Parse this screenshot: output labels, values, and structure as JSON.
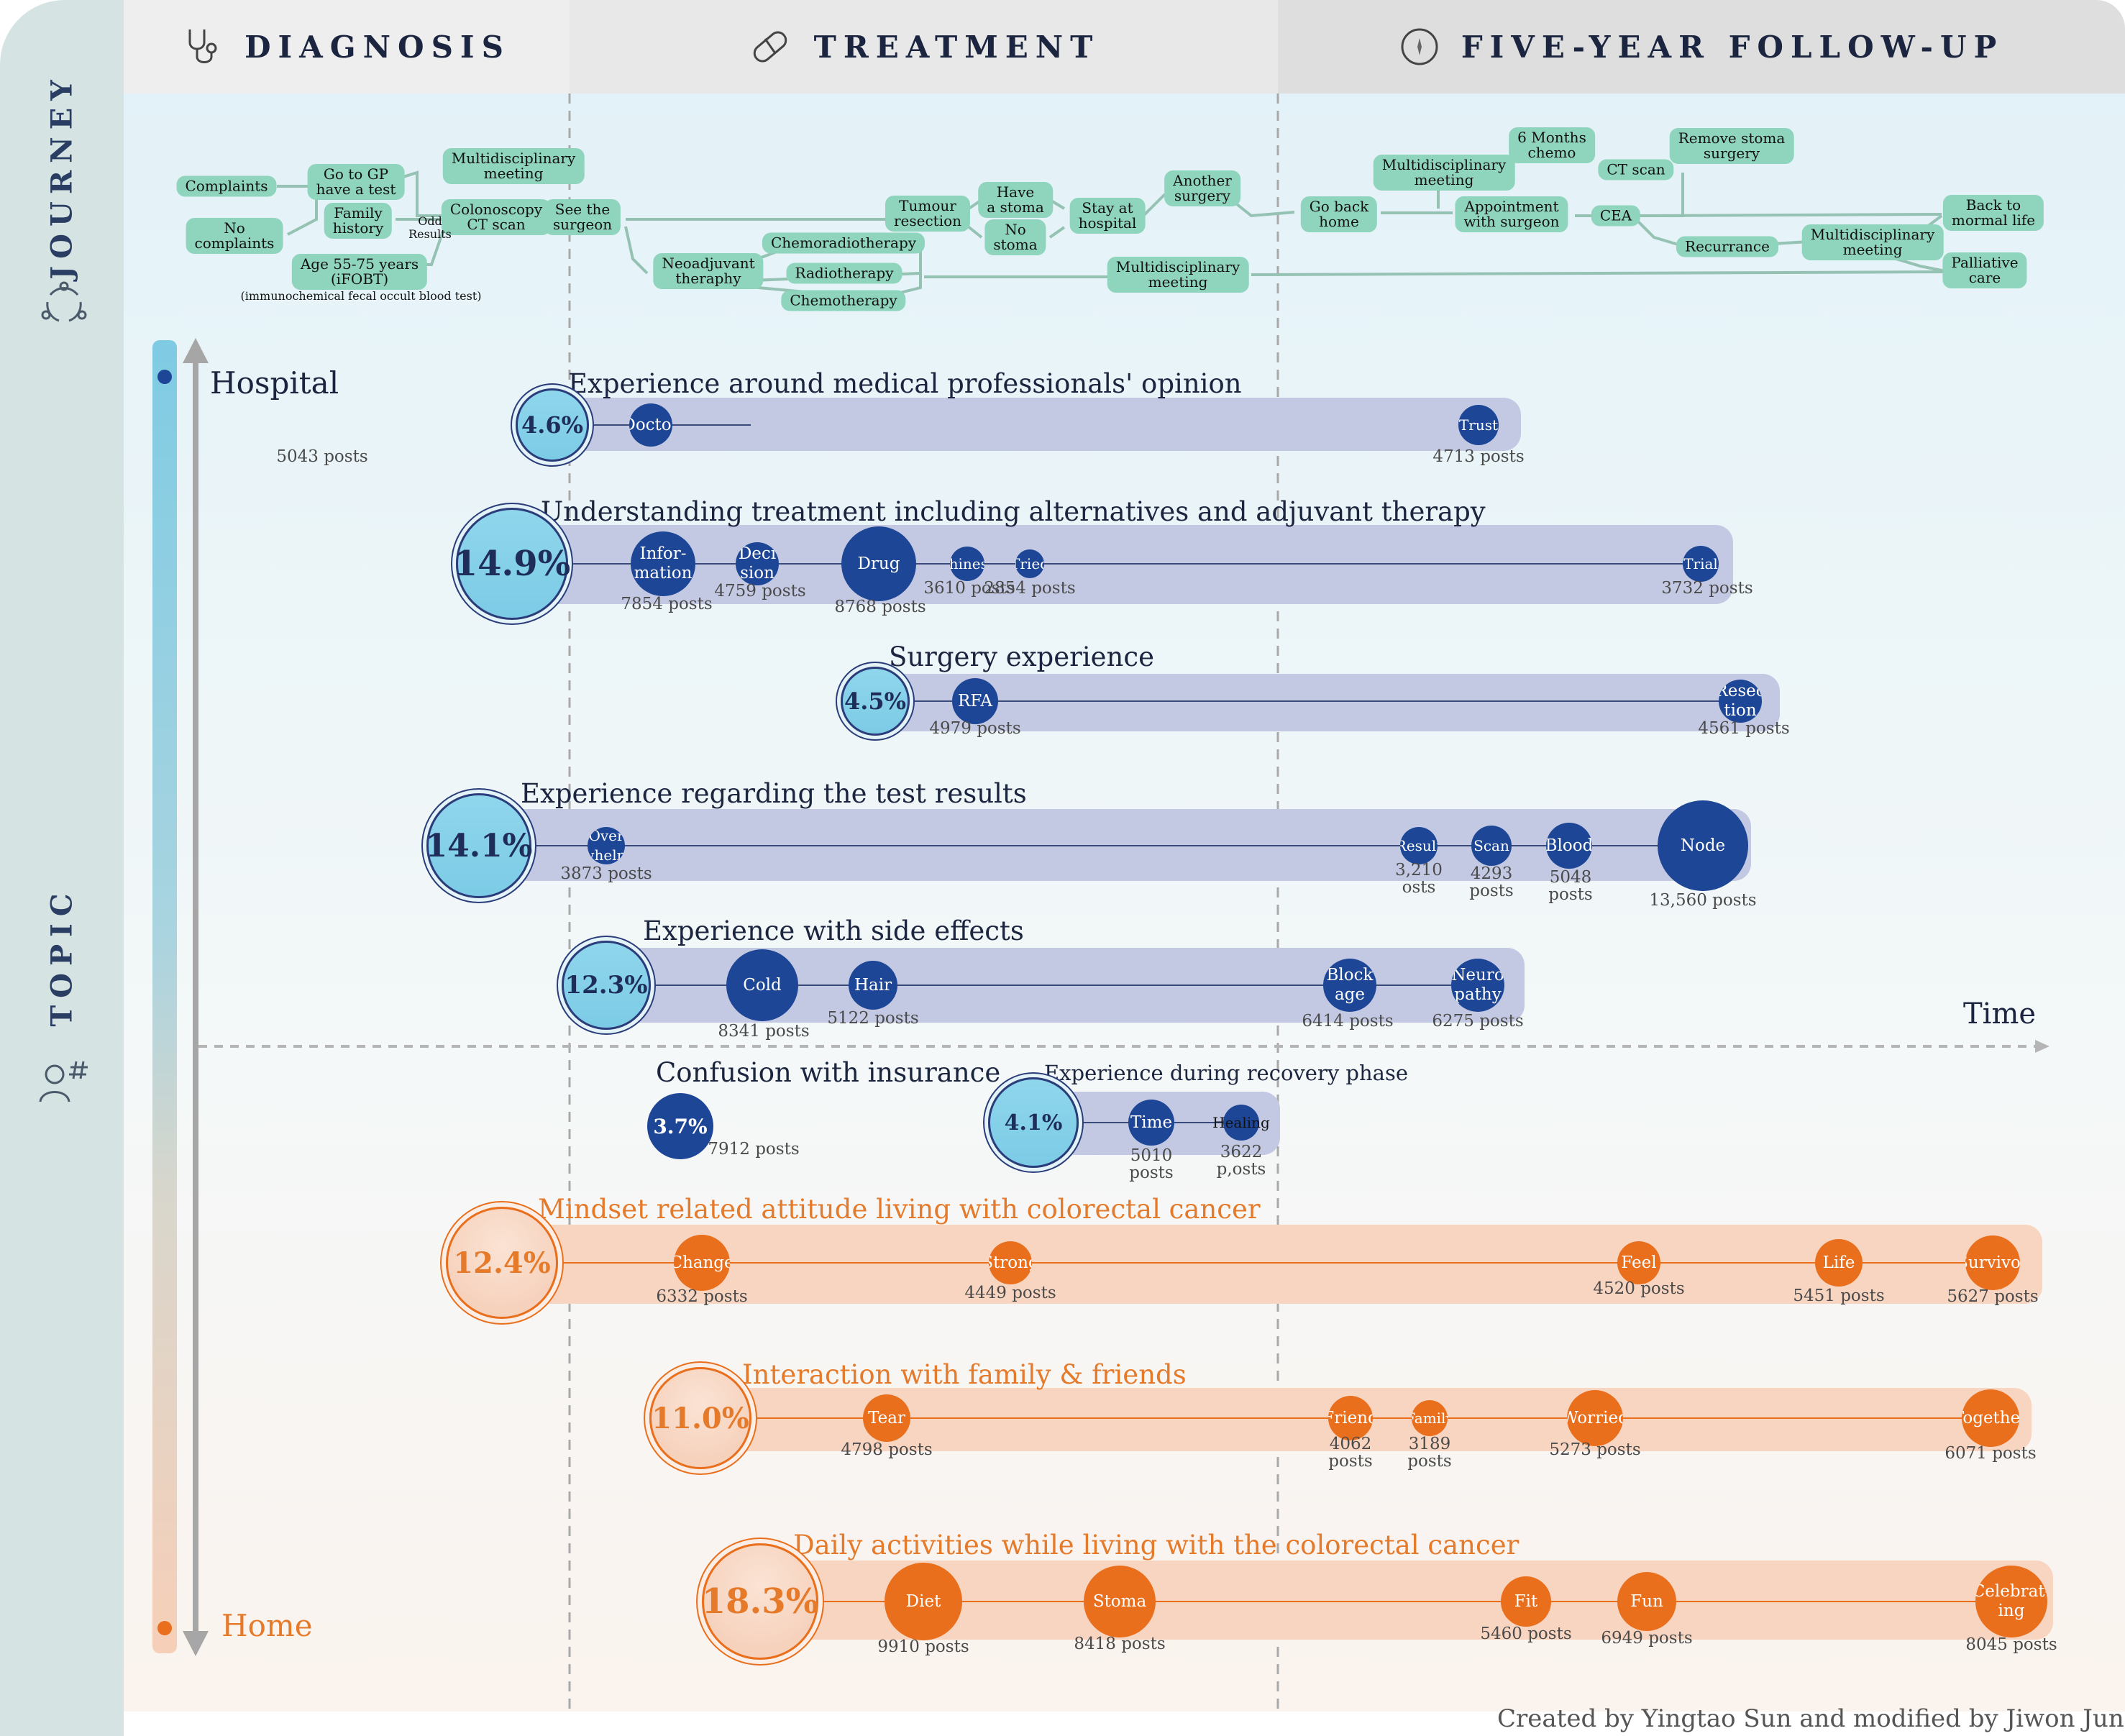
{
  "sidebar": {
    "journey_label": "JOURNEY",
    "topic_label": "TOPIC"
  },
  "phases": [
    {
      "label": "DIAGNOSIS",
      "icon": "stethoscope-icon"
    },
    {
      "label": "TREATMENT",
      "icon": "pill-icon"
    },
    {
      "label": "FIVE-YEAR FOLLOW-UP",
      "icon": "compass-icon"
    }
  ],
  "journey": {
    "nodes": [
      "Complaints",
      "Go to GP\nhave a test",
      "Multidisciplinary\nmeeting",
      "No\ncomplaints",
      "Family\nhistory",
      "Colonoscopy\nCT scan",
      "See the\nsurgeon",
      "Age 55-75 years\n(iFOBT)",
      "Neoadjuvant\ntheraphy",
      "Chemoradiotherapy",
      "Radiotherapy",
      "Chemotherapy",
      "Tumour\nresection",
      "Have\na stoma",
      "No\nstoma",
      "Stay at\nhospital",
      "Another\nsurgery",
      "Multidisciplinary\nmeeting",
      "Go back\nhome",
      "Multidisciplinary\nmeeting",
      "6 Months\nchemo",
      "CT scan",
      "Remove stoma\nsurgery",
      "Appointment\nwith surgeon",
      "CEA",
      "Recurrance",
      "Multidisciplinary\nmeeting",
      "Back to\nmormal life",
      "Palliative\ncare"
    ],
    "odd_results": "Odd\nResults",
    "ifobt_note": "(immunochemical fecal occult blood test)"
  },
  "axis": {
    "top": "Hospital",
    "bottom": "Home",
    "time": "Time"
  },
  "topics": [
    {
      "title": "Experience around medical professionals' opinion",
      "pct": "4.6%",
      "color": "blue",
      "keywords": [
        {
          "label": "Doctor",
          "posts": "5043 posts"
        },
        {
          "label": "Trust",
          "posts": "4713 posts"
        }
      ]
    },
    {
      "title": "Understanding  treatment including alternatives and adjuvant therapy",
      "pct": "14.9%",
      "color": "blue",
      "keywords": [
        {
          "label": "Infor-\nmation",
          "posts": "7854 posts"
        },
        {
          "label": "Deci\nsion",
          "posts": "4759 posts"
        },
        {
          "label": "Drug",
          "posts": "8768 posts"
        },
        {
          "label": "Chinese",
          "posts": "3610 posts"
        },
        {
          "label": "Tried",
          "posts": "2854 posts"
        },
        {
          "label": "Trial",
          "posts": "3732 posts"
        }
      ]
    },
    {
      "title": "Surgery experience",
      "pct": "4.5%",
      "color": "blue",
      "keywords": [
        {
          "label": "RFA",
          "posts": "4979 posts"
        },
        {
          "label": "Resec\ntion",
          "posts": "4561 posts"
        }
      ]
    },
    {
      "title": "Experience regarding the test results",
      "pct": "14.1%",
      "color": "blue",
      "keywords": [
        {
          "label": "Over\nwhelm",
          "posts": "3873 posts"
        },
        {
          "label": "Result",
          "posts": "3,210\nosts"
        },
        {
          "label": "Scan",
          "posts": "4293\nposts"
        },
        {
          "label": "Blood",
          "posts": "5048\nposts"
        },
        {
          "label": "Node",
          "posts": "13,560 posts"
        }
      ]
    },
    {
      "title": "Experience with side effects",
      "pct": "12.3%",
      "color": "blue",
      "keywords": [
        {
          "label": "Cold",
          "posts": "8341 posts"
        },
        {
          "label": "Hair",
          "posts": "5122 posts"
        },
        {
          "label": "Block\nage",
          "posts": "6414 posts"
        },
        {
          "label": "Neuro\npathy",
          "posts": "6275 posts"
        }
      ]
    },
    {
      "title": "Confusion with insurance",
      "pct": "3.7%",
      "color": "blue",
      "posts": "7912 posts",
      "keywords": []
    },
    {
      "title": "Experience during recovery phase",
      "pct": "4.1%",
      "color": "blue",
      "keywords": [
        {
          "label": "Time",
          "posts": "5010\nposts"
        },
        {
          "label": "Healing",
          "posts": "3622\np,osts"
        }
      ]
    },
    {
      "title": "Mindset related attitude living with colorectal cancer",
      "pct": "12.4%",
      "color": "orange",
      "keywords": [
        {
          "label": "Change",
          "posts": "6332 posts"
        },
        {
          "label": "Strong",
          "posts": "4449 posts"
        },
        {
          "label": "Feel",
          "posts": "4520 posts"
        },
        {
          "label": "Life",
          "posts": "5451 posts"
        },
        {
          "label": "Survivor",
          "posts": "5627 posts"
        }
      ]
    },
    {
      "title": "Interaction with family & friends",
      "pct": "11.0%",
      "color": "orange",
      "keywords": [
        {
          "label": "Tear",
          "posts": "4798 posts"
        },
        {
          "label": "Friend",
          "posts": "4062\nposts"
        },
        {
          "label": "Family",
          "posts": "3189\nposts"
        },
        {
          "label": "Worried",
          "posts": "5273 posts"
        },
        {
          "label": "Together",
          "posts": "6071 posts"
        }
      ]
    },
    {
      "title": "Daily activities while living with the colorectal cancer",
      "pct": "18.3%",
      "color": "orange",
      "keywords": [
        {
          "label": "Diet",
          "posts": "9910 posts"
        },
        {
          "label": "Stoma",
          "posts": "8418 posts"
        },
        {
          "label": "Fit",
          "posts": "5460 posts"
        },
        {
          "label": "Fun",
          "posts": "6949 posts"
        },
        {
          "label": "Celebrat-\ning",
          "posts": "8045 posts"
        }
      ]
    }
  ],
  "credit": "Created by Yingtao Sun and modified by Jiwon Jung",
  "colors": {
    "hospital_blue": "#1d4696",
    "home_orange": "#e96f1d",
    "node_green": "#8fd4bd",
    "band_blue": "#c4c9e3",
    "band_orange": "#f8d5c0"
  }
}
